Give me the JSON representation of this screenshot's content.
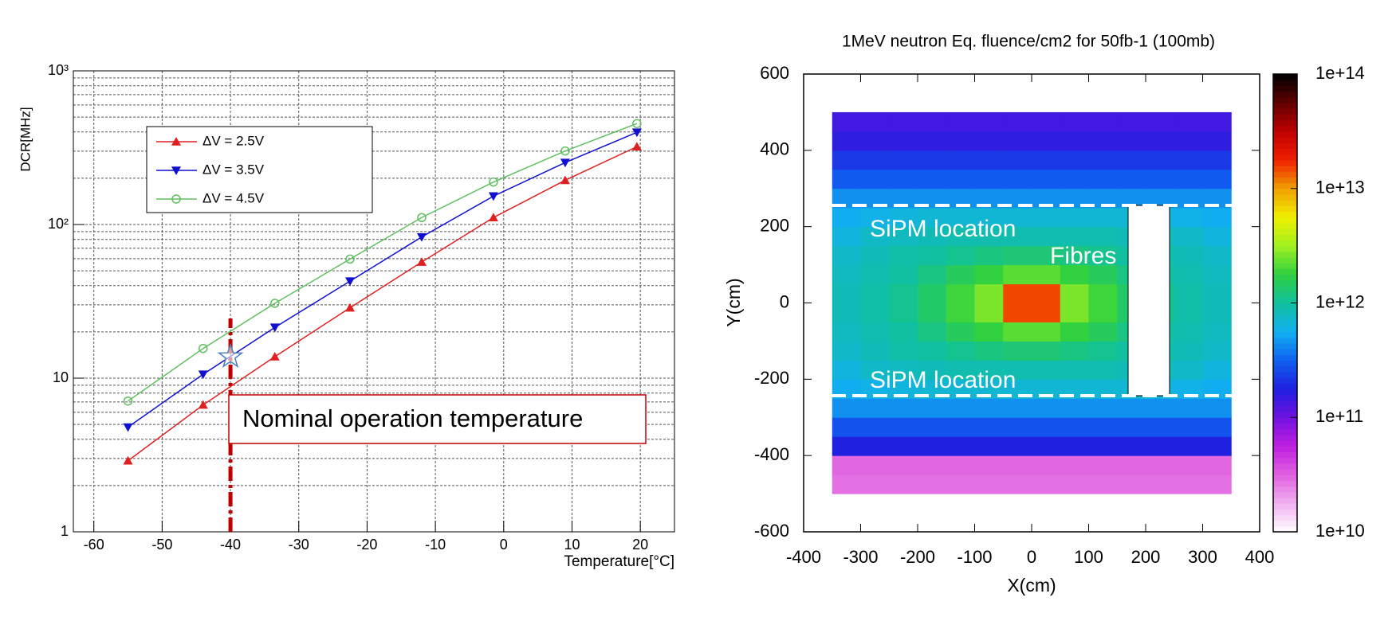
{
  "chart_data": [
    {
      "type": "line",
      "ylabel": "DCR[MHz]",
      "xlabel": "Temperature[°C]",
      "log_y": true,
      "grid": true,
      "x": [
        -55,
        -44,
        -33.5,
        -22.5,
        -12,
        -1.5,
        9,
        19.5
      ],
      "series": [
        {
          "name": "ΔV = 2.5V",
          "color": "#e02020",
          "marker": "triangle-up",
          "values": [
            2.9,
            6.7,
            13.8,
            28.7,
            57,
            111,
            194,
            321
          ]
        },
        {
          "name": "ΔV = 3.5V",
          "color": "#1010d0",
          "marker": "triangle-down",
          "values": [
            4.8,
            10.6,
            21.4,
            42.8,
            83,
            153,
            253,
            398
          ]
        },
        {
          "name": "ΔV = 4.5V",
          "color": "#60c060",
          "marker": "circle-open",
          "values": [
            7.1,
            15.6,
            30.7,
            59.6,
            111,
            189,
            301,
            454
          ]
        }
      ],
      "xlim": [
        -63,
        25
      ],
      "xticks": [
        -60,
        -50,
        -40,
        -30,
        -20,
        -10,
        0,
        10,
        20
      ],
      "ylim": [
        1,
        1000
      ],
      "yticks": [
        1,
        10,
        {
          "value": 100,
          "label": "10²"
        },
        {
          "value": 1000,
          "label": "10³"
        }
      ],
      "yminorticks": [
        2,
        3,
        4,
        5,
        6,
        7,
        8,
        9,
        20,
        30,
        40,
        50,
        60,
        70,
        80,
        90,
        200,
        300,
        400,
        500,
        600,
        700,
        800,
        900
      ],
      "annotation": {
        "text": "Nominal operation temperature",
        "x": -40,
        "y": 13.8
      }
    },
    {
      "type": "heatmap",
      "title": "1MeV neutron Eq. fluence/cm2 for 50fb-1  (100mb)",
      "xlabel": "X(cm)",
      "ylabel": "Y(cm)",
      "xlim": [
        -400,
        400
      ],
      "xticks": [
        -400,
        -300,
        -200,
        -100,
        0,
        100,
        200,
        300,
        400
      ],
      "ylim": [
        -600,
        600
      ],
      "yticks": [
        -600,
        -400,
        -200,
        0,
        200,
        400,
        600
      ],
      "x_edges": [
        -350,
        -300,
        -250,
        -200,
        -150,
        -100,
        -50,
        0,
        50,
        100,
        150,
        200,
        250,
        300,
        350
      ],
      "y_edges": [
        -500,
        -450,
        -400,
        -350,
        -300,
        -250,
        -200,
        -150,
        -100,
        -50,
        0,
        50,
        100,
        150,
        200,
        250,
        300,
        350,
        400,
        450,
        500
      ],
      "z": [
        [
          28000000000.0,
          28000000000.0,
          28000000000.0,
          28000000000.0,
          28000000000.0,
          28000000000.0,
          28000000000.0,
          28000000000.0,
          28000000000.0,
          28000000000.0,
          28000000000.0,
          28000000000.0,
          28000000000.0,
          28000000000.0
        ],
        [
          30000000000.0,
          30000000000.0,
          30000000000.0,
          30000000000.0,
          30000000000.0,
          30000000000.0,
          30000000000.0,
          30000000000.0,
          30000000000.0,
          30000000000.0,
          30000000000.0,
          30000000000.0,
          30000000000.0,
          30000000000.0
        ],
        [
          180000000000.0,
          180000000000.0,
          180000000000.0,
          180000000000.0,
          180000000000.0,
          180000000000.0,
          180000000000.0,
          180000000000.0,
          180000000000.0,
          180000000000.0,
          180000000000.0,
          180000000000.0,
          180000000000.0,
          180000000000.0
        ],
        [
          280000000000.0,
          280000000000.0,
          280000000000.0,
          280000000000.0,
          280000000000.0,
          280000000000.0,
          280000000000.0,
          280000000000.0,
          280000000000.0,
          280000000000.0,
          280000000000.0,
          280000000000.0,
          280000000000.0,
          280000000000.0
        ],
        [
          450000000000.0,
          450000000000.0,
          450000000000.0,
          450000000000.0,
          450000000000.0,
          450000000000.0,
          450000000000.0,
          450000000000.0,
          450000000000.0,
          450000000000.0,
          450000000000.0,
          450000000000.0,
          450000000000.0,
          450000000000.0
        ],
        [
          550000000000.0,
          600000000000.0,
          650000000000.0,
          700000000000.0,
          700000000000.0,
          700000000000.0,
          700000000000.0,
          700000000000.0,
          700000000000.0,
          700000000000.0,
          700000000000.0,
          650000000000.0,
          600000000000.0,
          550000000000.0
        ],
        [
          650000000000.0,
          750000000000.0,
          800000000000.0,
          850000000000.0,
          900000000000.0,
          900000000000.0,
          900000000000.0,
          900000000000.0,
          900000000000.0,
          900000000000.0,
          850000000000.0,
          800000000000.0,
          750000000000.0,
          650000000000.0
        ],
        [
          750000000000.0,
          850000000000.0,
          950000000000.0,
          1000000000000.0,
          1100000000000.0,
          1200000000000.0,
          1300000000000.0,
          1300000000000.0,
          1200000000000.0,
          1100000000000.0,
          1000000000000.0,
          950000000000.0,
          850000000000.0,
          750000000000.0
        ],
        [
          800000000000.0,
          900000000000.0,
          1000000000000.0,
          1200000000000.0,
          1500000000000.0,
          1800000000000.0,
          2200000000000.0,
          2200000000000.0,
          1800000000000.0,
          1500000000000.0,
          1200000000000.0,
          1000000000000.0,
          900000000000.0,
          800000000000.0
        ],
        [
          850000000000.0,
          950000000000.0,
          1100000000000.0,
          1400000000000.0,
          1900000000000.0,
          2600000000000.0,
          15000000000000.0,
          15000000000000.0,
          2600000000000.0,
          1900000000000.0,
          1400000000000.0,
          1100000000000.0,
          950000000000.0,
          850000000000.0
        ],
        [
          850000000000.0,
          950000000000.0,
          1100000000000.0,
          1400000000000.0,
          1900000000000.0,
          2600000000000.0,
          15000000000000.0,
          15000000000000.0,
          2600000000000.0,
          1900000000000.0,
          1400000000000.0,
          1100000000000.0,
          950000000000.0,
          850000000000.0
        ],
        [
          800000000000.0,
          900000000000.0,
          1000000000000.0,
          1200000000000.0,
          1500000000000.0,
          1800000000000.0,
          2200000000000.0,
          2200000000000.0,
          1800000000000.0,
          1500000000000.0,
          1200000000000.0,
          1000000000000.0,
          900000000000.0,
          800000000000.0
        ],
        [
          750000000000.0,
          850000000000.0,
          950000000000.0,
          1000000000000.0,
          1100000000000.0,
          1200000000000.0,
          1300000000000.0,
          1300000000000.0,
          1200000000000.0,
          1100000000000.0,
          1000000000000.0,
          950000000000.0,
          850000000000.0,
          750000000000.0
        ],
        [
          650000000000.0,
          750000000000.0,
          800000000000.0,
          850000000000.0,
          900000000000.0,
          900000000000.0,
          900000000000.0,
          900000000000.0,
          900000000000.0,
          900000000000.0,
          850000000000.0,
          800000000000.0,
          750000000000.0,
          650000000000.0
        ],
        [
          550000000000.0,
          600000000000.0,
          650000000000.0,
          700000000000.0,
          700000000000.0,
          700000000000.0,
          700000000000.0,
          700000000000.0,
          700000000000.0,
          700000000000.0,
          700000000000.0,
          650000000000.0,
          600000000000.0,
          550000000000.0
        ],
        [
          450000000000.0,
          450000000000.0,
          450000000000.0,
          450000000000.0,
          450000000000.0,
          450000000000.0,
          450000000000.0,
          450000000000.0,
          450000000000.0,
          450000000000.0,
          450000000000.0,
          450000000000.0,
          450000000000.0,
          450000000000.0
        ],
        [
          300000000000.0,
          300000000000.0,
          300000000000.0,
          300000000000.0,
          300000000000.0,
          300000000000.0,
          300000000000.0,
          300000000000.0,
          300000000000.0,
          300000000000.0,
          300000000000.0,
          300000000000.0,
          300000000000.0,
          300000000000.0
        ],
        [
          220000000000.0,
          220000000000.0,
          220000000000.0,
          220000000000.0,
          220000000000.0,
          220000000000.0,
          220000000000.0,
          220000000000.0,
          220000000000.0,
          220000000000.0,
          220000000000.0,
          220000000000.0,
          220000000000.0,
          220000000000.0
        ],
        [
          160000000000.0,
          160000000000.0,
          160000000000.0,
          160000000000.0,
          160000000000.0,
          160000000000.0,
          160000000000.0,
          160000000000.0,
          160000000000.0,
          160000000000.0,
          160000000000.0,
          160000000000.0,
          160000000000.0,
          160000000000.0
        ],
        [
          140000000000.0,
          140000000000.0,
          140000000000.0,
          140000000000.0,
          140000000000.0,
          140000000000.0,
          140000000000.0,
          140000000000.0,
          140000000000.0,
          140000000000.0,
          140000000000.0,
          140000000000.0,
          140000000000.0,
          140000000000.0
        ]
      ],
      "log_z": true,
      "zlim": [
        10000000000.0,
        100000000000000.0
      ],
      "zticks": [
        {
          "value": 10000000000.0,
          "label": "1e+10"
        },
        {
          "value": 100000000000.0,
          "label": "1e+11"
        },
        {
          "value": 1000000000000.0,
          "label": "1e+12"
        },
        {
          "value": 10000000000000.0,
          "label": "1e+13"
        },
        {
          "value": 100000000000000.0,
          "label": "1e+14"
        }
      ],
      "colormap": [
        "#ffffff",
        "#f0b0f0",
        "#e060e0",
        "#c020e0",
        "#7010e0",
        "#2020e0",
        "#1060f0",
        "#10b0f0",
        "#10c0a0",
        "#30d040",
        "#a0f020",
        "#f0f000",
        "#f0a000",
        "#f02000",
        "#c00000",
        "#600000",
        "#000000"
      ],
      "annotations": [
        "SiPM location",
        "SiPM location",
        "Fibres"
      ]
    }
  ]
}
